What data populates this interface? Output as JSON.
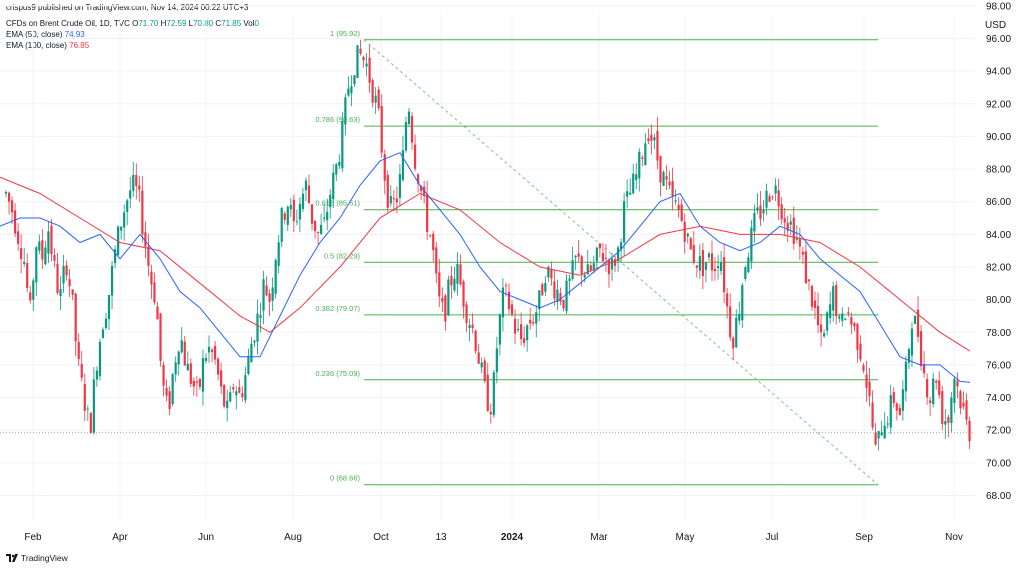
{
  "header": {
    "published": "crispus9 published on TradingView.com, Nov 14, 2024 00:22 UTC+3",
    "symbol": "CFDs on Brent Crude Oil, 1D, TVC",
    "ohlc": [
      {
        "k": "O",
        "v": "71.70"
      },
      {
        "k": "H",
        "v": "72.59"
      },
      {
        "k": "L",
        "v": "70.80"
      },
      {
        "k": "C",
        "v": "71.85"
      },
      {
        "k": "Vol",
        "v": "0"
      }
    ],
    "ema50_label": "EMA (50, close)",
    "ema50_value": "74.93",
    "ema100_label": "EMA (100, close)",
    "ema100_value": "76.85",
    "currency": "USD"
  },
  "footer": {
    "brand": "TradingView",
    "icon": "tradingview-logo-icon"
  },
  "colors": {
    "up": "#089981",
    "down": "#f23645",
    "ema50": "#2962ff",
    "ema100": "#f23645",
    "fib": "#4caf50"
  },
  "chart_data": {
    "type": "candlestick",
    "ylim": [
      66.5,
      97.5
    ],
    "y_ticks": [
      "68.00",
      "70.00",
      "72.00",
      "74.00",
      "76.00",
      "78.00",
      "80.00",
      "82.00",
      "84.00",
      "86.00",
      "88.00",
      "90.00",
      "92.00",
      "94.00",
      "96.00",
      "98.00"
    ],
    "x_ticks": [
      {
        "label": "Feb",
        "bold": false
      },
      {
        "label": "Apr",
        "bold": false
      },
      {
        "label": "Jun",
        "bold": false
      },
      {
        "label": "Aug",
        "bold": false
      },
      {
        "label": "Oct",
        "bold": false
      },
      {
        "label": "13",
        "bold": false
      },
      {
        "label": "2024",
        "bold": true
      },
      {
        "label": "Mar",
        "bold": false
      },
      {
        "label": "May",
        "bold": false
      },
      {
        "label": "Jul",
        "bold": false
      },
      {
        "label": "Sep",
        "bold": false
      },
      {
        "label": "Nov",
        "bold": false
      }
    ],
    "fib_levels": [
      {
        "label": "1 (95.92)",
        "price": 95.92
      },
      {
        "label": "0.786 (90.63)",
        "price": 90.63
      },
      {
        "label": "0.618 (85.51)",
        "price": 85.51
      },
      {
        "label": "0.5 (82.29)",
        "price": 82.29
      },
      {
        "label": "0.382 (79.07)",
        "price": 79.07
      },
      {
        "label": "0.236 (75.09)",
        "price": 75.09
      },
      {
        "label": "0 (68.66)",
        "price": 68.66
      }
    ],
    "last_price": 71.85,
    "close_path": [
      [
        0,
        84.2
      ],
      [
        6,
        86.5
      ],
      [
        12,
        85.5
      ],
      [
        18,
        84.0
      ],
      [
        24,
        82.5
      ],
      [
        30,
        79.0
      ],
      [
        36,
        83.5
      ],
      [
        42,
        82.5
      ],
      [
        48,
        84.5
      ],
      [
        54,
        82.0
      ],
      [
        60,
        80.0
      ],
      [
        66,
        82.5
      ],
      [
        72,
        80.0
      ],
      [
        78,
        76.0
      ],
      [
        84,
        74.0
      ],
      [
        90,
        72.0
      ],
      [
        96,
        76.0
      ],
      [
        102,
        78.5
      ],
      [
        108,
        80.0
      ],
      [
        114,
        82.5
      ],
      [
        120,
        84.5
      ],
      [
        126,
        86.0
      ],
      [
        132,
        87.0
      ],
      [
        138,
        86.5
      ],
      [
        144,
        84.0
      ],
      [
        150,
        81.5
      ],
      [
        156,
        80.0
      ],
      [
        162,
        75.0
      ],
      [
        168,
        73.0
      ],
      [
        174,
        76.0
      ],
      [
        180,
        78.0
      ],
      [
        186,
        76.0
      ],
      [
        192,
        75.0
      ],
      [
        198,
        74.0
      ],
      [
        204,
        76.5
      ],
      [
        210,
        77.0
      ],
      [
        216,
        76.0
      ],
      [
        222,
        74.0
      ],
      [
        228,
        73.0
      ],
      [
        234,
        75.0
      ],
      [
        240,
        74.0
      ],
      [
        246,
        75.5
      ],
      [
        252,
        77.5
      ],
      [
        258,
        79.0
      ],
      [
        264,
        81.0
      ],
      [
        270,
        80.0
      ],
      [
        276,
        83.0
      ],
      [
        282,
        85.0
      ],
      [
        288,
        86.0
      ],
      [
        294,
        84.5
      ],
      [
        300,
        86.0
      ],
      [
        306,
        87.0
      ],
      [
        312,
        85.0
      ],
      [
        318,
        84.0
      ],
      [
        324,
        84.5
      ],
      [
        330,
        86.5
      ],
      [
        336,
        88.0
      ],
      [
        342,
        90.0
      ],
      [
        348,
        93.0
      ],
      [
        354,
        94.5
      ],
      [
        360,
        95.0
      ],
      [
        366,
        94.5
      ],
      [
        372,
        93.0
      ],
      [
        378,
        91.5
      ],
      [
        384,
        88.0
      ],
      [
        390,
        85.5
      ],
      [
        396,
        86.0
      ],
      [
        402,
        88.0
      ],
      [
        408,
        92.5
      ],
      [
        414,
        89.0
      ],
      [
        420,
        87.0
      ],
      [
        426,
        85.0
      ],
      [
        432,
        83.5
      ],
      [
        438,
        80.0
      ],
      [
        444,
        79.0
      ],
      [
        450,
        81.0
      ],
      [
        456,
        82.0
      ],
      [
        462,
        80.5
      ],
      [
        468,
        79.0
      ],
      [
        474,
        78.0
      ],
      [
        480,
        76.0
      ],
      [
        486,
        74.0
      ],
      [
        492,
        73.5
      ],
      [
        498,
        78.0
      ],
      [
        504,
        80.5
      ],
      [
        510,
        79.5
      ],
      [
        516,
        78.0
      ],
      [
        522,
        77.5
      ],
      [
        528,
        78.5
      ],
      [
        534,
        79.0
      ],
      [
        540,
        80.0
      ],
      [
        546,
        82.0
      ],
      [
        552,
        81.0
      ],
      [
        558,
        80.5
      ],
      [
        564,
        80.0
      ],
      [
        570,
        81.0
      ],
      [
        576,
        82.5
      ],
      [
        582,
        82.0
      ],
      [
        588,
        81.5
      ],
      [
        594,
        82.0
      ],
      [
        600,
        83.0
      ],
      [
        606,
        82.5
      ],
      [
        612,
        82.0
      ],
      [
        618,
        83.0
      ],
      [
        624,
        85.5
      ],
      [
        630,
        86.5
      ],
      [
        636,
        87.5
      ],
      [
        642,
        89.0
      ],
      [
        648,
        90.5
      ],
      [
        654,
        89.5
      ],
      [
        660,
        88.0
      ],
      [
        666,
        87.0
      ],
      [
        672,
        86.0
      ],
      [
        678,
        85.5
      ],
      [
        684,
        84.5
      ],
      [
        690,
        83.0
      ],
      [
        696,
        82.5
      ],
      [
        702,
        82.0
      ],
      [
        708,
        82.5
      ],
      [
        714,
        82.0
      ],
      [
        720,
        83.0
      ],
      [
        726,
        80.0
      ],
      [
        732,
        77.5
      ],
      [
        738,
        79.0
      ],
      [
        744,
        82.0
      ],
      [
        750,
        83.5
      ],
      [
        756,
        85.0
      ],
      [
        762,
        85.5
      ],
      [
        768,
        86.5
      ],
      [
        774,
        87.0
      ],
      [
        780,
        86.0
      ],
      [
        786,
        85.0
      ],
      [
        792,
        84.5
      ],
      [
        798,
        83.5
      ],
      [
        804,
        82.0
      ],
      [
        810,
        80.5
      ],
      [
        816,
        79.0
      ],
      [
        822,
        77.0
      ],
      [
        828,
        79.0
      ],
      [
        834,
        80.5
      ],
      [
        840,
        78.0
      ],
      [
        846,
        79.5
      ],
      [
        852,
        78.5
      ],
      [
        858,
        77.5
      ],
      [
        864,
        76.0
      ],
      [
        870,
        73.5
      ],
      [
        876,
        70.5
      ],
      [
        882,
        72.5
      ],
      [
        888,
        73.0
      ],
      [
        894,
        74.0
      ],
      [
        900,
        73.0
      ],
      [
        906,
        75.5
      ],
      [
        912,
        79.0
      ],
      [
        918,
        78.0
      ],
      [
        924,
        75.5
      ],
      [
        930,
        74.0
      ],
      [
        936,
        75.5
      ],
      [
        942,
        73.0
      ],
      [
        948,
        72.5
      ],
      [
        954,
        75.5
      ],
      [
        960,
        74.0
      ],
      [
        966,
        72.5
      ],
      [
        970,
        71.85
      ]
    ],
    "ema50_path": [
      [
        0,
        84.5
      ],
      [
        20,
        85.0
      ],
      [
        40,
        85.0
      ],
      [
        60,
        84.5
      ],
      [
        80,
        83.5
      ],
      [
        100,
        84.0
      ],
      [
        120,
        82.5
      ],
      [
        140,
        84.0
      ],
      [
        160,
        82.5
      ],
      [
        180,
        80.5
      ],
      [
        200,
        79.5
      ],
      [
        220,
        78.0
      ],
      [
        240,
        76.5
      ],
      [
        260,
        76.5
      ],
      [
        280,
        79.0
      ],
      [
        300,
        81.5
      ],
      [
        320,
        83.5
      ],
      [
        340,
        85.0
      ],
      [
        360,
        87.0
      ],
      [
        380,
        88.5
      ],
      [
        400,
        89.0
      ],
      [
        420,
        87.0
      ],
      [
        440,
        85.5
      ],
      [
        460,
        84.0
      ],
      [
        480,
        82.0
      ],
      [
        500,
        80.5
      ],
      [
        520,
        80.0
      ],
      [
        540,
        79.5
      ],
      [
        560,
        80.0
      ],
      [
        580,
        81.0
      ],
      [
        600,
        82.0
      ],
      [
        620,
        83.0
      ],
      [
        640,
        84.5
      ],
      [
        660,
        86.0
      ],
      [
        680,
        86.5
      ],
      [
        700,
        84.5
      ],
      [
        720,
        83.5
      ],
      [
        740,
        83.0
      ],
      [
        760,
        83.5
      ],
      [
        780,
        84.5
      ],
      [
        800,
        84.0
      ],
      [
        820,
        82.5
      ],
      [
        840,
        81.5
      ],
      [
        860,
        80.5
      ],
      [
        880,
        78.5
      ],
      [
        900,
        76.5
      ],
      [
        920,
        76.0
      ],
      [
        940,
        76.0
      ],
      [
        960,
        75.0
      ],
      [
        970,
        74.93
      ]
    ],
    "ema100_path": [
      [
        0,
        87.5
      ],
      [
        40,
        86.5
      ],
      [
        80,
        85.0
      ],
      [
        120,
        83.5
      ],
      [
        160,
        83.0
      ],
      [
        200,
        81.0
      ],
      [
        240,
        79.0
      ],
      [
        270,
        78.0
      ],
      [
        300,
        79.5
      ],
      [
        340,
        82.0
      ],
      [
        380,
        85.0
      ],
      [
        420,
        86.5
      ],
      [
        460,
        85.5
      ],
      [
        500,
        83.5
      ],
      [
        540,
        82.0
      ],
      [
        580,
        81.5
      ],
      [
        620,
        82.5
      ],
      [
        660,
        84.0
      ],
      [
        700,
        84.5
      ],
      [
        740,
        84.0
      ],
      [
        780,
        84.0
      ],
      [
        820,
        83.5
      ],
      [
        860,
        82.0
      ],
      [
        900,
        80.0
      ],
      [
        940,
        78.0
      ],
      [
        970,
        76.85
      ]
    ]
  }
}
